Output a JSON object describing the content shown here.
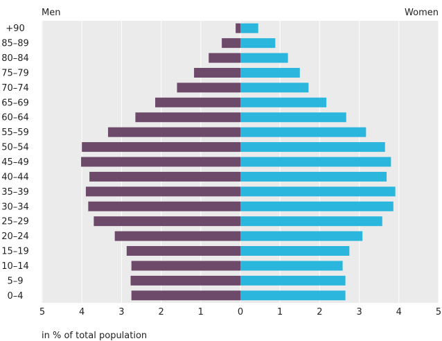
{
  "chart_data": {
    "type": "bar",
    "orientation": "horizontal-population-pyramid",
    "categories": [
      "0–4",
      "5–9",
      "10–14",
      "15–19",
      "20–24",
      "25–29",
      "30–34",
      "35–39",
      "40–44",
      "45–49",
      "50–54",
      "55–59",
      "60–64",
      "65–69",
      "70–74",
      "75–79",
      "80–84",
      "85–89",
      "+90"
    ],
    "series": [
      {
        "name": "Men",
        "color": "#6e4a6a",
        "values": [
          2.75,
          2.77,
          2.75,
          2.87,
          3.17,
          3.7,
          3.84,
          3.9,
          3.81,
          4.02,
          4.0,
          3.34,
          2.65,
          2.15,
          1.6,
          1.17,
          0.8,
          0.47,
          0.12
        ]
      },
      {
        "name": "Women",
        "color": "#2bb6dd",
        "values": [
          2.65,
          2.65,
          2.58,
          2.75,
          3.08,
          3.58,
          3.86,
          3.91,
          3.69,
          3.8,
          3.65,
          3.17,
          2.67,
          2.17,
          1.72,
          1.5,
          1.2,
          0.88,
          0.45
        ]
      }
    ],
    "xticks": [
      "5",
      "4",
      "3",
      "2",
      "1",
      "0",
      "1",
      "2",
      "3",
      "4",
      "5"
    ],
    "xlim": [
      0,
      5
    ],
    "xlabel": "in % of total population",
    "left_label": "Men",
    "right_label": "Women",
    "grid": "vertical",
    "plot_background": "#ebebeb",
    "grid_color": "#ffffff"
  }
}
